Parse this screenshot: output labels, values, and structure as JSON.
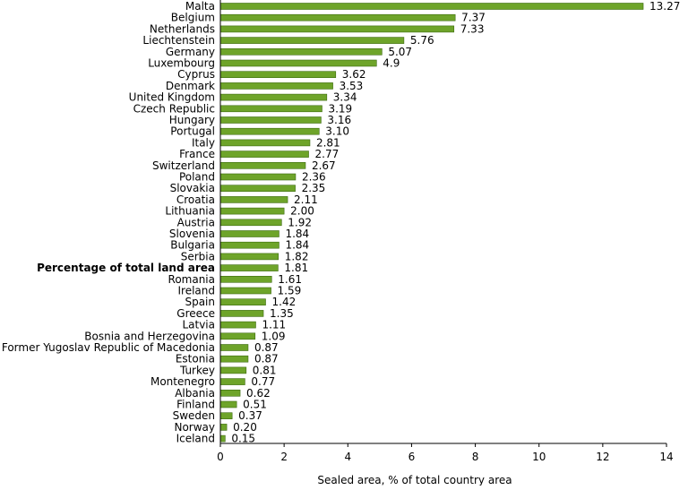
{
  "colors": {
    "bar": "#6ea42a",
    "bar_stroke": "#3d6b10",
    "axis": "#000000"
  },
  "chart_data": {
    "type": "bar",
    "orientation": "horizontal",
    "xlabel": "Sealed area, % of total country area",
    "xlim": [
      0,
      14
    ],
    "xticks": [
      "0",
      "2",
      "4",
      "6",
      "8",
      "10",
      "12",
      "14"
    ],
    "grid": false,
    "categories": [
      "Malta",
      "Belgium",
      "Netherlands",
      "Liechtenstein",
      "Germany",
      "Luxembourg",
      "Cyprus",
      "Denmark",
      "United Kingdom",
      "Czech Republic",
      "Hungary",
      "Portugal",
      "Italy",
      "France",
      "Switzerland",
      "Poland",
      "Slovakia",
      "Croatia",
      "Lithuania",
      "Austria",
      "Slovenia",
      "Bulgaria",
      "Serbia",
      "Percentage of total land area",
      "Romania",
      "Ireland",
      "Spain",
      "Greece",
      "Latvia",
      "Bosnia and Herzegovina",
      "Former Yugoslav Republic  of Macedonia",
      "Estonia",
      "Turkey",
      "Montenegro",
      "Albania",
      "Finland",
      "Sweden",
      "Norway",
      "Iceland"
    ],
    "values": [
      13.27,
      7.37,
      7.33,
      5.76,
      5.07,
      4.9,
      3.62,
      3.53,
      3.34,
      3.19,
      3.16,
      3.1,
      2.81,
      2.77,
      2.67,
      2.36,
      2.35,
      2.11,
      2.0,
      1.92,
      1.84,
      1.84,
      1.82,
      1.81,
      1.61,
      1.59,
      1.42,
      1.35,
      1.11,
      1.09,
      0.87,
      0.87,
      0.81,
      0.77,
      0.62,
      0.51,
      0.37,
      0.2,
      0.15
    ],
    "value_labels": [
      "13.27",
      "7.37",
      "7.33",
      "5.76",
      "5.07",
      "4.9",
      "3.62",
      "3.53",
      "3.34",
      "3.19",
      "3.16",
      "3.10",
      "2.81",
      "2.77",
      "2.67",
      "2.36",
      "2.35",
      "2.11",
      "2.00",
      "1.92",
      "1.84",
      "1.84",
      "1.82",
      "1.81",
      "1.61",
      "1.59",
      "1.42",
      "1.35",
      "1.11",
      "1.09",
      "0.87",
      "0.87",
      "0.81",
      "0.77",
      "0.62",
      "0.51",
      "0.37",
      "0.20",
      "0.15"
    ],
    "bold_categories": [
      "Percentage of total land area"
    ]
  }
}
